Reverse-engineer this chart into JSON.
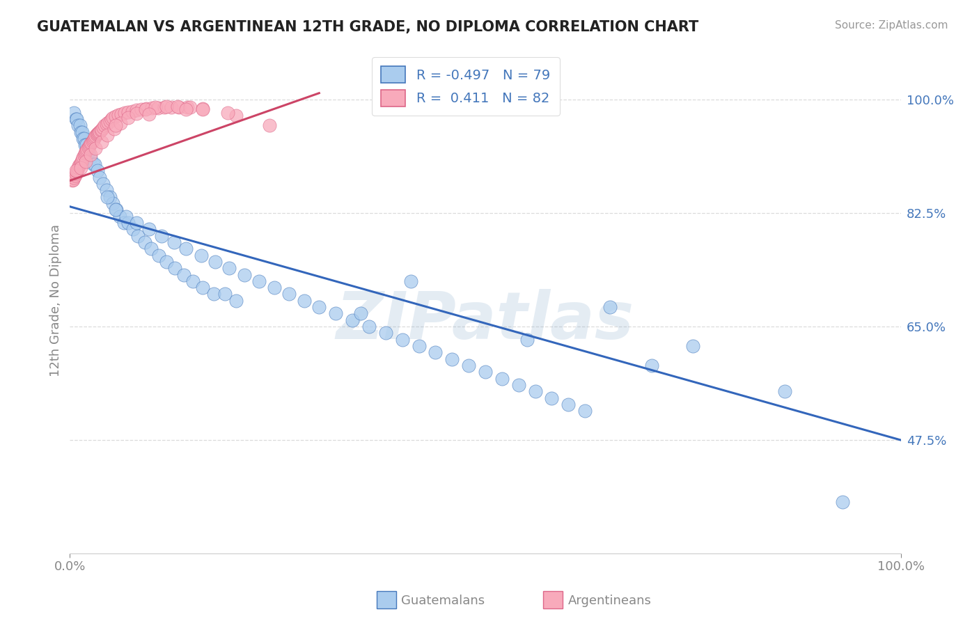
{
  "title": "GUATEMALAN VS ARGENTINEAN 12TH GRADE, NO DIPLOMA CORRELATION CHART",
  "source": "Source: ZipAtlas.com",
  "ylabel": "12th Grade, No Diploma",
  "watermark": "ZIPatlas",
  "blue_label": "Guatemalans",
  "pink_label": "Argentineans",
  "blue_R": -0.497,
  "blue_N": 79,
  "pink_R": 0.411,
  "pink_N": 82,
  "blue_color": "#aaccee",
  "blue_edge_color": "#4477bb",
  "pink_color": "#f8aabb",
  "pink_edge_color": "#dd6688",
  "pink_line_color": "#cc4466",
  "blue_line_color": "#3366bb",
  "bg_color": "#ffffff",
  "grid_color": "#cccccc",
  "title_color": "#222222",
  "source_color": "#999999",
  "axis_color": "#888888",
  "tick_color": "#4477bb",
  "xlim": [
    0.0,
    1.0
  ],
  "ylim": [
    0.3,
    1.08
  ],
  "yticks": [
    0.475,
    0.65,
    0.825,
    1.0
  ],
  "ytick_labels": [
    "47.5%",
    "65.0%",
    "82.5%",
    "100.0%"
  ],
  "xtick_vals": [
    0.0,
    1.0
  ],
  "xtick_labels": [
    "0.0%",
    "100.0%"
  ],
  "blue_trend_x": [
    0.0,
    1.0
  ],
  "blue_trend_y": [
    0.835,
    0.475
  ],
  "pink_trend_x": [
    0.0,
    0.3
  ],
  "pink_trend_y": [
    0.875,
    1.01
  ],
  "blue_pts_x": [
    0.005,
    0.007,
    0.008,
    0.01,
    0.012,
    0.013,
    0.015,
    0.016,
    0.017,
    0.018,
    0.02,
    0.022,
    0.025,
    0.028,
    0.03,
    0.033,
    0.036,
    0.04,
    0.044,
    0.048,
    0.052,
    0.056,
    0.06,
    0.065,
    0.07,
    0.076,
    0.082,
    0.09,
    0.098,
    0.107,
    0.116,
    0.126,
    0.137,
    0.148,
    0.16,
    0.173,
    0.187,
    0.2,
    0.055,
    0.068,
    0.08,
    0.095,
    0.11,
    0.125,
    0.14,
    0.158,
    0.175,
    0.192,
    0.21,
    0.228,
    0.246,
    0.264,
    0.282,
    0.3,
    0.32,
    0.34,
    0.36,
    0.38,
    0.4,
    0.42,
    0.44,
    0.46,
    0.48,
    0.5,
    0.52,
    0.54,
    0.56,
    0.58,
    0.6,
    0.62,
    0.045,
    0.35,
    0.41,
    0.55,
    0.65,
    0.7,
    0.75,
    0.86,
    0.93
  ],
  "blue_pts_y": [
    0.98,
    0.97,
    0.97,
    0.96,
    0.96,
    0.95,
    0.95,
    0.94,
    0.94,
    0.93,
    0.93,
    0.92,
    0.91,
    0.9,
    0.9,
    0.89,
    0.88,
    0.87,
    0.86,
    0.85,
    0.84,
    0.83,
    0.82,
    0.81,
    0.81,
    0.8,
    0.79,
    0.78,
    0.77,
    0.76,
    0.75,
    0.74,
    0.73,
    0.72,
    0.71,
    0.7,
    0.7,
    0.69,
    0.83,
    0.82,
    0.81,
    0.8,
    0.79,
    0.78,
    0.77,
    0.76,
    0.75,
    0.74,
    0.73,
    0.72,
    0.71,
    0.7,
    0.69,
    0.68,
    0.67,
    0.66,
    0.65,
    0.64,
    0.63,
    0.62,
    0.61,
    0.6,
    0.59,
    0.58,
    0.57,
    0.56,
    0.55,
    0.54,
    0.53,
    0.52,
    0.85,
    0.67,
    0.72,
    0.63,
    0.68,
    0.59,
    0.62,
    0.55,
    0.38
  ],
  "pink_pts_x": [
    0.003,
    0.004,
    0.005,
    0.006,
    0.007,
    0.008,
    0.009,
    0.01,
    0.011,
    0.012,
    0.013,
    0.014,
    0.015,
    0.016,
    0.017,
    0.018,
    0.019,
    0.02,
    0.021,
    0.022,
    0.023,
    0.024,
    0.025,
    0.026,
    0.027,
    0.028,
    0.029,
    0.03,
    0.031,
    0.032,
    0.033,
    0.034,
    0.035,
    0.036,
    0.037,
    0.038,
    0.04,
    0.042,
    0.044,
    0.046,
    0.048,
    0.05,
    0.052,
    0.055,
    0.058,
    0.062,
    0.066,
    0.07,
    0.075,
    0.08,
    0.086,
    0.092,
    0.099,
    0.106,
    0.114,
    0.122,
    0.131,
    0.141,
    0.007,
    0.013,
    0.019,
    0.025,
    0.031,
    0.038,
    0.045,
    0.053,
    0.061,
    0.07,
    0.08,
    0.091,
    0.103,
    0.116,
    0.13,
    0.145,
    0.16,
    0.055,
    0.095,
    0.16,
    0.2,
    0.24,
    0.19,
    0.14
  ],
  "pink_pts_y": [
    0.875,
    0.877,
    0.88,
    0.883,
    0.886,
    0.889,
    0.892,
    0.895,
    0.898,
    0.9,
    0.902,
    0.905,
    0.908,
    0.911,
    0.914,
    0.917,
    0.92,
    0.922,
    0.924,
    0.926,
    0.928,
    0.93,
    0.932,
    0.934,
    0.936,
    0.938,
    0.94,
    0.942,
    0.944,
    0.946,
    0.947,
    0.949,
    0.95,
    0.951,
    0.953,
    0.954,
    0.957,
    0.96,
    0.963,
    0.965,
    0.967,
    0.97,
    0.972,
    0.974,
    0.976,
    0.978,
    0.98,
    0.981,
    0.982,
    0.984,
    0.985,
    0.986,
    0.987,
    0.987,
    0.988,
    0.988,
    0.988,
    0.988,
    0.89,
    0.895,
    0.905,
    0.915,
    0.925,
    0.935,
    0.945,
    0.955,
    0.964,
    0.972,
    0.979,
    0.985,
    0.988,
    0.989,
    0.989,
    0.988,
    0.986,
    0.96,
    0.978,
    0.985,
    0.975,
    0.96,
    0.98,
    0.985
  ]
}
